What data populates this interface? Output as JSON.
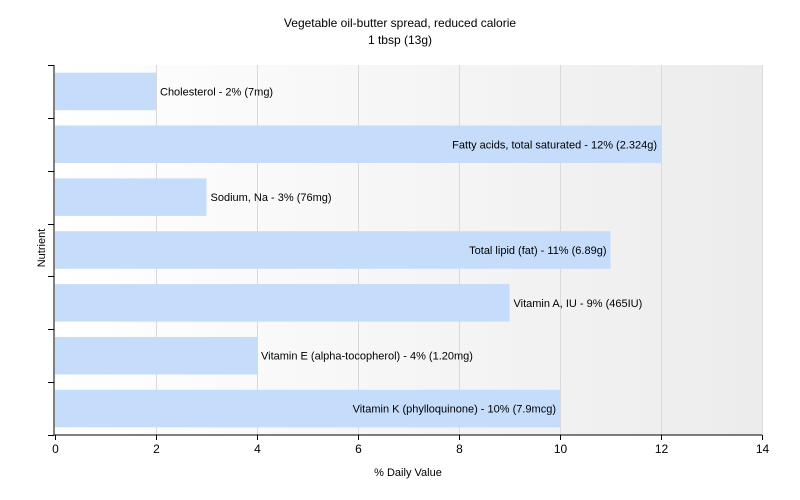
{
  "chart_data": {
    "type": "bar",
    "orientation": "horizontal",
    "title": "Vegetable oil-butter spread, reduced calorie",
    "subtitle": "1 tbsp (13g)",
    "xlabel": "% Daily Value",
    "ylabel": "Nutrient",
    "xlim": [
      0,
      14
    ],
    "xticks": [
      0,
      2,
      4,
      6,
      8,
      10,
      12,
      14
    ],
    "grid": true,
    "legend": "none",
    "bar_color": "#c5dcfb",
    "bars": [
      {
        "nutrient": "Cholesterol",
        "value": 2,
        "label": "Cholesterol - 2% (7mg)"
      },
      {
        "nutrient": "Fatty acids, total saturated",
        "value": 12,
        "label": "Fatty acids, total saturated - 12% (2.324g)"
      },
      {
        "nutrient": "Sodium, Na",
        "value": 3,
        "label": "Sodium, Na - 3% (76mg)"
      },
      {
        "nutrient": "Total lipid (fat)",
        "value": 11,
        "label": "Total lipid (fat) - 11% (6.89g)"
      },
      {
        "nutrient": "Vitamin A, IU",
        "value": 9,
        "label": "Vitamin A, IU - 9% (465IU)"
      },
      {
        "nutrient": "Vitamin E (alpha-tocopherol)",
        "value": 4,
        "label": "Vitamin E (alpha-tocopherol) - 4% (1.20mg)"
      },
      {
        "nutrient": "Vitamin K (phylloquinone)",
        "value": 10,
        "label": "Vitamin K (phylloquinone) - 10% (7.9mcg)"
      }
    ]
  }
}
